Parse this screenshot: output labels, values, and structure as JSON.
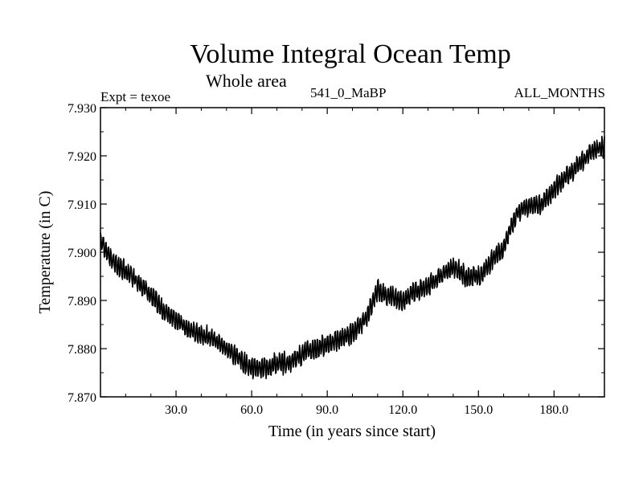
{
  "chart_data": {
    "type": "line",
    "title": "Volume Integral Ocean Temp",
    "subtitle": "Whole area",
    "annotations": {
      "left": "Expt = texoe",
      "center": "541_0_MaBP",
      "right": "ALL_MONTHS"
    },
    "xlabel": "Time (in years since start)",
    "ylabel": "Temperature (in C)",
    "xlim": [
      0,
      200
    ],
    "ylim": [
      7.87,
      7.93
    ],
    "xticks": [
      30,
      60,
      90,
      120,
      150,
      180
    ],
    "xtick_labels": [
      "30.0",
      "60.0",
      "90.0",
      "120.0",
      "150.0",
      "180.0"
    ],
    "yticks": [
      7.87,
      7.88,
      7.89,
      7.9,
      7.91,
      7.92,
      7.93
    ],
    "ytick_labels": [
      "7.870",
      "7.880",
      "7.890",
      "7.900",
      "7.910",
      "7.920",
      "7.930"
    ],
    "grid": false,
    "seasonal_amplitude": 0.0016,
    "series": [
      {
        "name": "Volume Integral Ocean Temp",
        "color": "#000000",
        "trend_x": [
          0,
          5,
          10,
          15,
          20,
          25,
          30,
          35,
          40,
          45,
          50,
          55,
          60,
          65,
          70,
          75,
          80,
          85,
          90,
          95,
          100,
          105,
          110,
          115,
          120,
          125,
          130,
          135,
          140,
          145,
          150,
          155,
          160,
          165,
          170,
          175,
          180,
          185,
          190,
          195,
          200
        ],
        "trend_y": [
          7.9025,
          7.898,
          7.896,
          7.894,
          7.891,
          7.888,
          7.886,
          7.884,
          7.883,
          7.882,
          7.88,
          7.878,
          7.876,
          7.876,
          7.877,
          7.877,
          7.879,
          7.88,
          7.881,
          7.882,
          7.883,
          7.886,
          7.892,
          7.891,
          7.89,
          7.892,
          7.893,
          7.895,
          7.897,
          7.895,
          7.895,
          7.898,
          7.901,
          7.908,
          7.91,
          7.91,
          7.913,
          7.916,
          7.918,
          7.921,
          7.922
        ]
      }
    ]
  }
}
